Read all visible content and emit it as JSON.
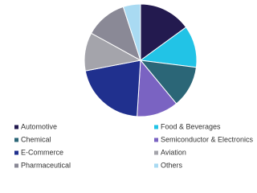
{
  "chart_data": {
    "type": "pie",
    "categories": [
      "Automotive",
      "Food & Beverages",
      "Chemical",
      "Semiconductor & Electronics",
      "E-Commerce",
      "Aviation",
      "Pharmaceutical",
      "Others"
    ],
    "values": [
      15,
      12,
      12,
      12,
      21,
      11,
      12,
      5
    ],
    "colors": [
      "#231a4f",
      "#22c3e6",
      "#2b6677",
      "#7a63c2",
      "#20308e",
      "#a4a4ab",
      "#8a8996",
      "#a9daf2"
    ]
  }
}
